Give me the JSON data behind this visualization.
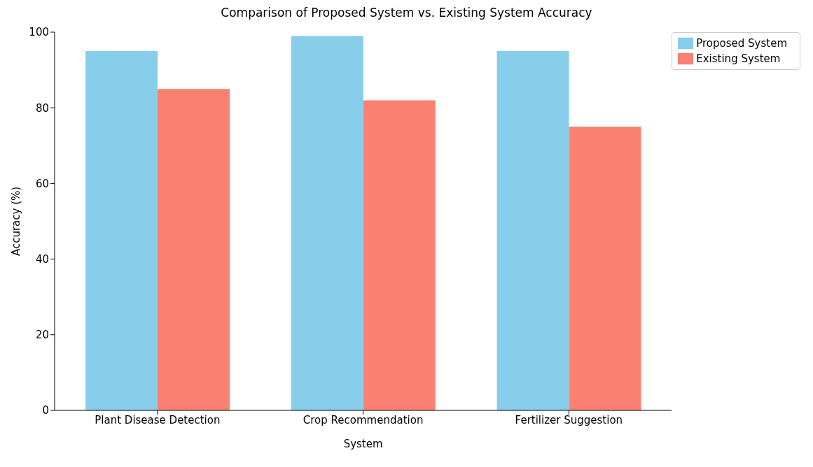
{
  "chart_data": {
    "type": "bar",
    "title": "Comparison of Proposed System vs. Existing System Accuracy",
    "xlabel": "System",
    "ylabel": "Accuracy (%)",
    "categories": [
      "Plant Disease Detection",
      "Crop Recommendation",
      "Fertilizer Suggestion"
    ],
    "series": [
      {
        "name": "Proposed System",
        "color": "#87ceeb",
        "values": [
          95,
          99,
          95
        ]
      },
      {
        "name": "Existing System",
        "color": "#fa8072",
        "values": [
          85,
          82,
          75
        ]
      }
    ],
    "ylim": [
      0,
      100
    ],
    "yticks": [
      0,
      20,
      40,
      60,
      80,
      100
    ],
    "grid": false,
    "legend": "top right"
  }
}
